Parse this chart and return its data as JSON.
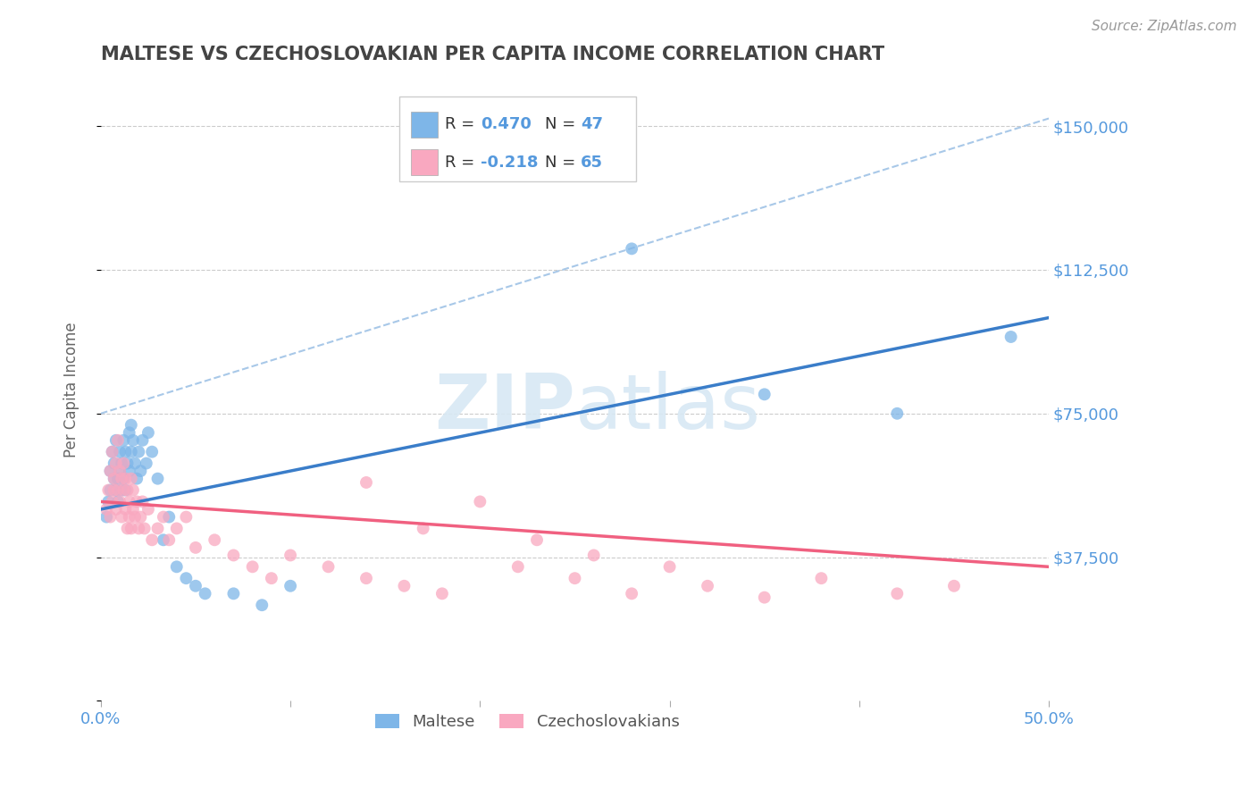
{
  "title": "MALTESE VS CZECHOSLOVAKIAN PER CAPITA INCOME CORRELATION CHART",
  "source": "Source: ZipAtlas.com",
  "ylabel": "Per Capita Income",
  "yticks": [
    0,
    37500,
    75000,
    112500,
    150000
  ],
  "ytick_labels": [
    "",
    "$37,500",
    "$75,000",
    "$112,500",
    "$150,000"
  ],
  "xlim": [
    0.0,
    0.5
  ],
  "ylim": [
    0,
    162500
  ],
  "maltese_color": "#7EB6E8",
  "czech_color": "#F9A8C0",
  "maltese_line_color": "#3A7DC9",
  "czech_line_color": "#F06080",
  "dashed_color": "#A8C8E8",
  "background_color": "#FFFFFF",
  "grid_color": "#CCCCCC",
  "title_color": "#444444",
  "axis_label_color": "#5599DD",
  "watermark_color": "#D8E8F4",
  "legend_R1_label": "R = ",
  "legend_R1_val": "0.470",
  "legend_N1_label": "N = ",
  "legend_N1_val": "47",
  "legend_R2_label": "R = ",
  "legend_R2_val": "-0.218",
  "legend_N2_label": "N = ",
  "legend_N2_val": "65",
  "legend_label1": "Maltese",
  "legend_label2": "Czechoslovakians",
  "maltese_x": [
    0.003,
    0.004,
    0.005,
    0.005,
    0.006,
    0.007,
    0.007,
    0.008,
    0.008,
    0.009,
    0.009,
    0.01,
    0.01,
    0.011,
    0.011,
    0.012,
    0.012,
    0.013,
    0.013,
    0.014,
    0.015,
    0.015,
    0.016,
    0.016,
    0.017,
    0.018,
    0.019,
    0.02,
    0.021,
    0.022,
    0.024,
    0.025,
    0.027,
    0.03,
    0.033,
    0.036,
    0.04,
    0.045,
    0.05,
    0.055,
    0.07,
    0.085,
    0.1,
    0.28,
    0.35,
    0.42,
    0.48
  ],
  "maltese_y": [
    48000,
    52000,
    55000,
    60000,
    65000,
    58000,
    62000,
    55000,
    68000,
    52000,
    58000,
    60000,
    65000,
    55000,
    62000,
    58000,
    68000,
    65000,
    55000,
    62000,
    60000,
    70000,
    65000,
    72000,
    68000,
    62000,
    58000,
    65000,
    60000,
    68000,
    62000,
    70000,
    65000,
    58000,
    42000,
    48000,
    35000,
    32000,
    30000,
    28000,
    28000,
    25000,
    30000,
    118000,
    80000,
    75000,
    95000
  ],
  "czech_x": [
    0.003,
    0.004,
    0.005,
    0.005,
    0.006,
    0.006,
    0.007,
    0.007,
    0.008,
    0.008,
    0.009,
    0.009,
    0.01,
    0.01,
    0.011,
    0.011,
    0.012,
    0.012,
    0.013,
    0.013,
    0.014,
    0.014,
    0.015,
    0.015,
    0.016,
    0.016,
    0.017,
    0.017,
    0.018,
    0.019,
    0.02,
    0.021,
    0.022,
    0.023,
    0.025,
    0.027,
    0.03,
    0.033,
    0.036,
    0.04,
    0.045,
    0.05,
    0.06,
    0.07,
    0.08,
    0.09,
    0.1,
    0.12,
    0.14,
    0.16,
    0.18,
    0.22,
    0.25,
    0.28,
    0.32,
    0.35,
    0.38,
    0.42,
    0.45,
    0.14,
    0.17,
    0.2,
    0.23,
    0.26,
    0.3
  ],
  "czech_y": [
    50000,
    55000,
    48000,
    60000,
    52000,
    65000,
    58000,
    55000,
    62000,
    50000,
    68000,
    55000,
    52000,
    60000,
    58000,
    48000,
    55000,
    62000,
    50000,
    58000,
    45000,
    55000,
    48000,
    52000,
    45000,
    58000,
    50000,
    55000,
    48000,
    52000,
    45000,
    48000,
    52000,
    45000,
    50000,
    42000,
    45000,
    48000,
    42000,
    45000,
    48000,
    40000,
    42000,
    38000,
    35000,
    32000,
    38000,
    35000,
    32000,
    30000,
    28000,
    35000,
    32000,
    28000,
    30000,
    27000,
    32000,
    28000,
    30000,
    57000,
    45000,
    52000,
    42000,
    38000,
    35000
  ],
  "maltese_trend_x": [
    0.0,
    0.5
  ],
  "maltese_trend_y": [
    50000,
    100000
  ],
  "czech_trend_x": [
    0.0,
    0.5
  ],
  "czech_trend_y": [
    52000,
    35000
  ],
  "dashed_trend_x": [
    0.0,
    0.5
  ],
  "dashed_trend_y": [
    75000,
    152000
  ]
}
